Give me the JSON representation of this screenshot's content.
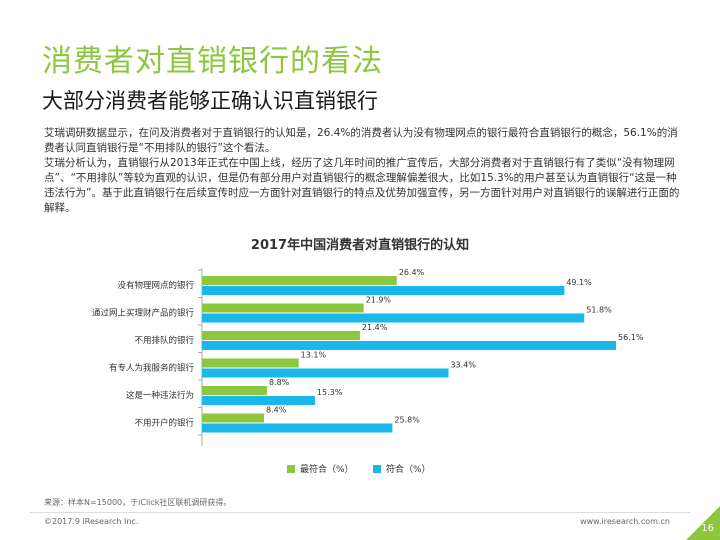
{
  "page": {
    "title": "消费者对直销银行的看法",
    "subtitle": "大部分消费者能够正确认识直销银行",
    "paragraph1": "艾瑞调研数据显示，在问及消费者对于直销银行的认知是，26.4%的消费者认为没有物理网点的银行最符合直销银行的概念，56.1%的消费者认同直销银行是“不用排队的银行”这个看法。",
    "paragraph2": "艾瑞分析认为，直销银行从2013年正式在中国上线，经历了这几年时间的推广宣传后，大部分消费者对于直销银行有了类似“没有物理网点”、“不用排队”等较为直观的认识，但是仍有部分用户对直销银行的概念理解偏差很大，比如15.3%的用户甚至认为直销银行“这是一种违法行为”。基于此直销银行在后续宣传时应一方面针对直销银行的特点及优势加强宣传，另一方面针对用户对直销银行的误解进行正面的解释。",
    "source": "来源：样本N=15000，于iClick社区联机调研获得。",
    "copyright": "©2017.9 iResearch Inc.",
    "url": "www.iresearch.com.cn",
    "page_number": "16"
  },
  "colors": {
    "green": "#8dc63f",
    "blue": "#1ab7ea",
    "axis": "#aaaaaa"
  },
  "chart_data": {
    "type": "bar",
    "orientation": "horizontal",
    "title": "2017年中国消费者对直销银行的认知",
    "categories": [
      "没有物理网点的银行",
      "通过网上买理财产品的银行",
      "不用排队的银行",
      "有专人为我服务的银行",
      "这是一种违法行为",
      "不用开户的银行"
    ],
    "series": [
      {
        "name": "最符合（%）",
        "values": [
          26.4,
          21.9,
          21.4,
          13.1,
          8.8,
          8.4
        ],
        "labels": [
          "26.4%",
          "21.9%",
          "21.4%",
          "13.1%",
          "8.8%",
          "8.4%"
        ]
      },
      {
        "name": "符合（%）",
        "values": [
          49.1,
          51.8,
          56.1,
          33.4,
          15.3,
          25.8
        ],
        "labels": [
          "49.1%",
          "51.8%",
          "56.1%",
          "33.4%",
          "15.3%",
          "25.8%"
        ]
      }
    ],
    "xlim": [
      0,
      60
    ],
    "legend": "bottom"
  }
}
